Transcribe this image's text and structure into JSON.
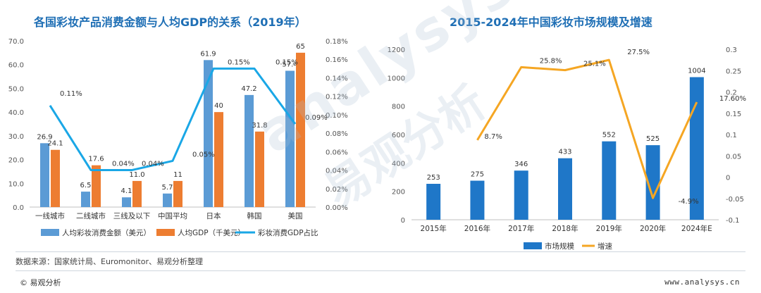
{
  "chart_data": [
    {
      "type": "bar",
      "title": "各国彩妆产品消费金额与人均GDP的关系（2019年）",
      "categories": [
        "一线城市",
        "二线城市",
        "三线及以下",
        "中国平均",
        "日本",
        "韩国",
        "美国"
      ],
      "left_axis": {
        "ylim": [
          0,
          70
        ],
        "ticks": [
          "0.0",
          "10.0",
          "20.0",
          "30.0",
          "40.0",
          "50.0",
          "60.0",
          "70.0"
        ]
      },
      "right_axis": {
        "ylim": [
          0,
          0.18
        ],
        "ticks": [
          "0.00%",
          "0.02%",
          "0.04%",
          "0.06%",
          "0.08%",
          "0.10%",
          "0.12%",
          "0.14%",
          "0.16%",
          "0.18%"
        ]
      },
      "series": [
        {
          "name": "人均彩妆消费金额（美元）",
          "kind": "bar",
          "axis": "left",
          "color": "#5b9bd5",
          "values": [
            26.9,
            6.5,
            4.1,
            5.7,
            61.9,
            47.2,
            57.4
          ],
          "labels": [
            "26.9",
            "6.5",
            "4.1",
            "5.7",
            "61.9",
            "47.2",
            "57.4"
          ]
        },
        {
          "name": "人均GDP（千美元）",
          "kind": "bar",
          "axis": "left",
          "color": "#ed7d31",
          "values": [
            24.1,
            17.6,
            11.0,
            11.0,
            40.0,
            31.8,
            65.0
          ],
          "labels": [
            "24.1",
            "17.6",
            "11.0",
            "11",
            "40",
            "31.8",
            "65"
          ]
        },
        {
          "name": "彩妆消费GDP占比",
          "kind": "line",
          "axis": "right",
          "color": "#1aa7e6",
          "values": [
            0.11,
            0.04,
            0.04,
            0.05,
            0.15,
            0.15,
            0.09
          ],
          "labels": [
            "0.11%",
            "0.04%",
            "0.04%",
            "0.05%",
            "0.15%",
            "0.15%",
            "0.09%"
          ]
        }
      ]
    },
    {
      "type": "bar",
      "title": "2015-2024年中国彩妆市场规模及增速",
      "categories": [
        "2015年",
        "2016年",
        "2017年",
        "2018年",
        "2019年",
        "2020年",
        "2024年E"
      ],
      "left_axis": {
        "ylim": [
          0,
          1200
        ],
        "ticks": [
          "0",
          "200",
          "400",
          "600",
          "800",
          "1000",
          "1200"
        ]
      },
      "right_axis": {
        "ylim": [
          -0.1,
          0.3
        ],
        "ticks": [
          "-0.1",
          "-0.05",
          "0",
          "0.05",
          "0.1",
          "0.15",
          "0.2",
          "0.25",
          "0.3"
        ]
      },
      "series": [
        {
          "name": "市场规模",
          "kind": "bar",
          "axis": "left",
          "color": "#1f77c8",
          "values": [
            253,
            275,
            346,
            433,
            552,
            525,
            1004
          ],
          "labels": [
            "253",
            "275",
            "346",
            "433",
            "552",
            "525",
            "1004"
          ]
        },
        {
          "name": "增速",
          "kind": "line",
          "axis": "right",
          "color": "#f5a623",
          "values": [
            null,
            0.087,
            0.258,
            0.251,
            0.275,
            -0.049,
            0.176
          ],
          "labels": [
            null,
            "8.7%",
            "25.8%",
            "25.1%",
            "27.5%",
            "-4.9%",
            "17.60%"
          ]
        }
      ]
    }
  ],
  "source_note": "数据来源：国家统计局、Euromonitor、易观分析整理",
  "footer": {
    "left": "© 易观分析",
    "right": "www.analysys.cn"
  },
  "watermark": {
    "latin": "analysys",
    "chinese": "易观分析"
  }
}
